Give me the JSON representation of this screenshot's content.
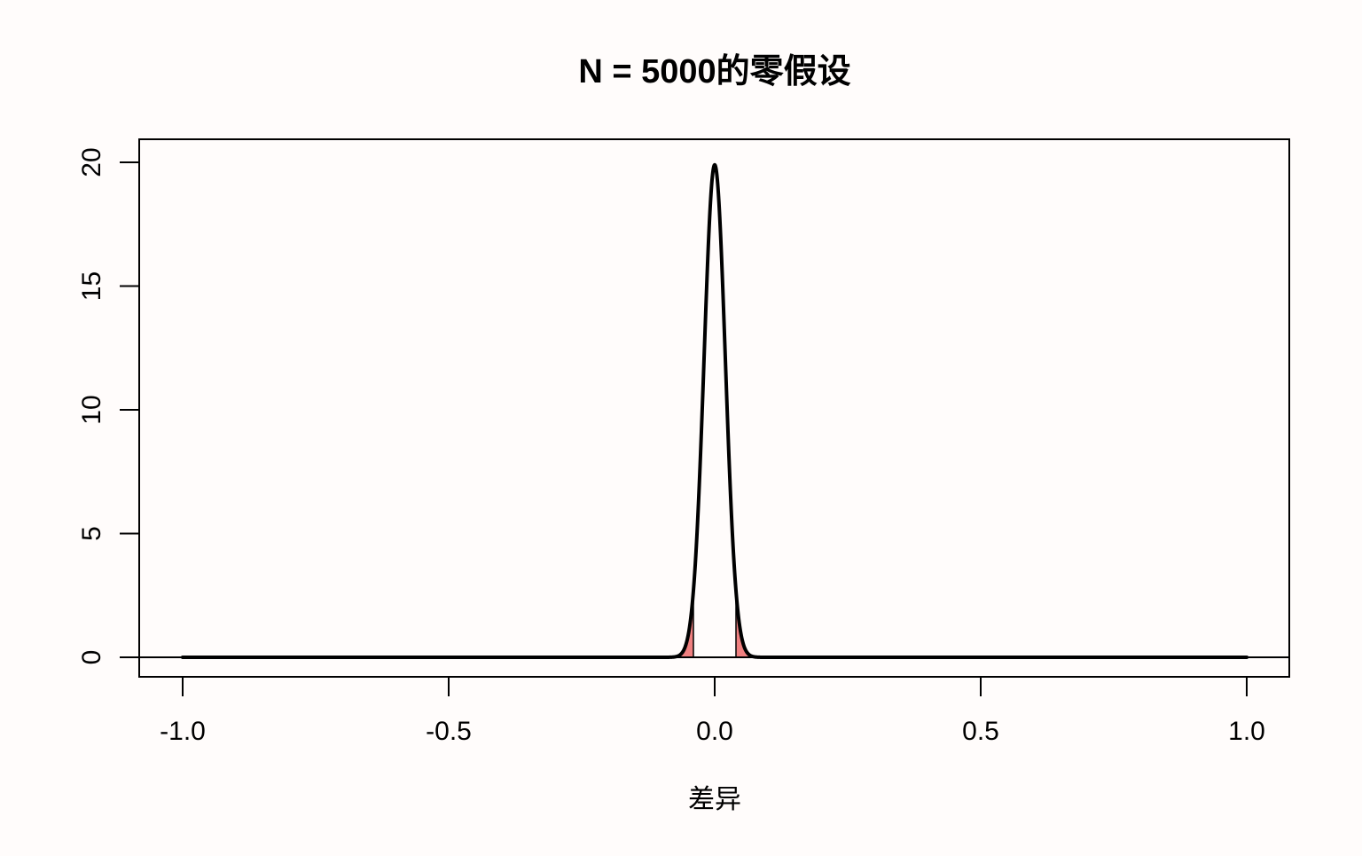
{
  "chart_data": {
    "type": "area",
    "title": "N = 5000的零假设",
    "xlabel": "差异",
    "ylabel": "",
    "xlim": [
      -1.0,
      1.0
    ],
    "ylim": [
      0,
      20
    ],
    "x_ticks": [
      -1.0,
      -0.5,
      0.0,
      0.5,
      1.0
    ],
    "x_tick_labels": [
      "-1.0",
      "-0.5",
      "0.0",
      "0.5",
      "1.0"
    ],
    "y_ticks": [
      0,
      5,
      10,
      15,
      20
    ],
    "y_tick_labels": [
      "0",
      "5",
      "10",
      "15",
      "20"
    ],
    "grid": false,
    "legend": "none",
    "series": [
      {
        "curve": "normal density",
        "mean": 0.0,
        "sd": 0.02,
        "peak": 19.9,
        "x_range": [
          -1.0,
          1.0
        ],
        "color": "#000000"
      }
    ],
    "shaded_regions": [
      {
        "x_from": -1.0,
        "x_to": -0.04,
        "color": "#f08080"
      },
      {
        "x_from": 0.04,
        "x_to": 1.0,
        "color": "#f08080"
      }
    ],
    "reference_line": {
      "y": 0,
      "color": "#000000"
    },
    "background_color": "#fffcfb"
  }
}
